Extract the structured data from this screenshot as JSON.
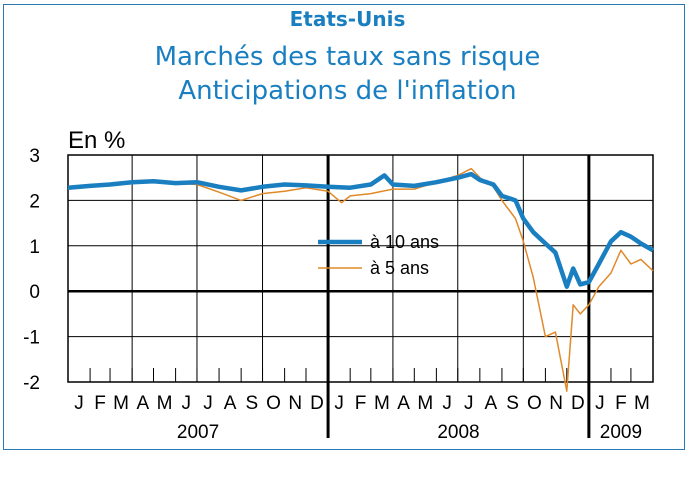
{
  "header": {
    "supertitle": "Etats-Unis",
    "title_line1": "Marchés des taux sans risque",
    "title_line2": "Anticipations de l'inflation"
  },
  "colors": {
    "ten_year": "#1a7fc1",
    "five_year": "#e0892a",
    "title": "#1a7fc1"
  },
  "chart_data": {
    "type": "line",
    "unit_label": "En %",
    "ylim": [
      -2,
      3
    ],
    "yticks": [
      3,
      2,
      1,
      0,
      -1,
      -2
    ],
    "xlim": [
      "2007-01-01",
      "2009-04-01"
    ],
    "grid": true,
    "legend_placement": "center-right",
    "month_labels": [
      "J",
      "F",
      "M",
      "A",
      "M",
      "J",
      "J",
      "A",
      "S",
      "O",
      "N",
      "D",
      "J",
      "F",
      "M",
      "A",
      "M",
      "J",
      "J",
      "A",
      "S",
      "O",
      "N",
      "D",
      "J",
      "F",
      "M"
    ],
    "year_labels": [
      "2007",
      "2008",
      "2009"
    ],
    "series": [
      {
        "name": "à 10 ans",
        "points": [
          [
            "2007-01-01",
            2.28
          ],
          [
            "2007-02-01",
            2.32
          ],
          [
            "2007-03-01",
            2.35
          ],
          [
            "2007-04-01",
            2.4
          ],
          [
            "2007-05-01",
            2.42
          ],
          [
            "2007-06-01",
            2.38
          ],
          [
            "2007-07-01",
            2.4
          ],
          [
            "2007-08-01",
            2.3
          ],
          [
            "2007-09-01",
            2.22
          ],
          [
            "2007-10-01",
            2.3
          ],
          [
            "2007-11-01",
            2.35
          ],
          [
            "2007-12-01",
            2.33
          ],
          [
            "2008-01-01",
            2.3
          ],
          [
            "2008-02-01",
            2.28
          ],
          [
            "2008-03-01",
            2.35
          ],
          [
            "2008-03-20",
            2.55
          ],
          [
            "2008-04-01",
            2.35
          ],
          [
            "2008-05-01",
            2.32
          ],
          [
            "2008-06-01",
            2.4
          ],
          [
            "2008-07-01",
            2.5
          ],
          [
            "2008-07-20",
            2.58
          ],
          [
            "2008-08-01",
            2.45
          ],
          [
            "2008-08-20",
            2.35
          ],
          [
            "2008-09-01",
            2.1
          ],
          [
            "2008-09-20",
            2.0
          ],
          [
            "2008-10-01",
            1.6
          ],
          [
            "2008-10-15",
            1.3
          ],
          [
            "2008-11-01",
            1.05
          ],
          [
            "2008-11-15",
            0.85
          ],
          [
            "2008-12-01",
            0.1
          ],
          [
            "2008-12-10",
            0.5
          ],
          [
            "2008-12-20",
            0.15
          ],
          [
            "2009-01-01",
            0.2
          ],
          [
            "2009-01-15",
            0.6
          ],
          [
            "2009-02-01",
            1.1
          ],
          [
            "2009-02-15",
            1.3
          ],
          [
            "2009-03-01",
            1.2
          ],
          [
            "2009-03-15",
            1.05
          ],
          [
            "2009-04-01",
            0.9
          ]
        ]
      },
      {
        "name": "à 5 ans",
        "points": [
          [
            "2007-01-01",
            2.25
          ],
          [
            "2007-02-01",
            2.3
          ],
          [
            "2007-03-01",
            2.35
          ],
          [
            "2007-04-01",
            2.38
          ],
          [
            "2007-05-01",
            2.4
          ],
          [
            "2007-06-01",
            2.38
          ],
          [
            "2007-07-01",
            2.35
          ],
          [
            "2007-08-01",
            2.18
          ],
          [
            "2007-09-01",
            2.0
          ],
          [
            "2007-10-01",
            2.15
          ],
          [
            "2007-11-01",
            2.2
          ],
          [
            "2007-12-01",
            2.28
          ],
          [
            "2008-01-01",
            2.2
          ],
          [
            "2008-01-20",
            1.95
          ],
          [
            "2008-02-01",
            2.1
          ],
          [
            "2008-03-01",
            2.15
          ],
          [
            "2008-04-01",
            2.25
          ],
          [
            "2008-05-01",
            2.25
          ],
          [
            "2008-06-01",
            2.4
          ],
          [
            "2008-07-01",
            2.55
          ],
          [
            "2008-07-20",
            2.7
          ],
          [
            "2008-08-01",
            2.5
          ],
          [
            "2008-08-20",
            2.3
          ],
          [
            "2008-09-01",
            2.0
          ],
          [
            "2008-09-20",
            1.6
          ],
          [
            "2008-10-01",
            1.1
          ],
          [
            "2008-10-15",
            0.3
          ],
          [
            "2008-11-01",
            -1.0
          ],
          [
            "2008-11-15",
            -0.9
          ],
          [
            "2008-12-01",
            -2.2
          ],
          [
            "2008-12-10",
            -0.3
          ],
          [
            "2008-12-20",
            -0.5
          ],
          [
            "2009-01-01",
            -0.3
          ],
          [
            "2009-01-15",
            0.1
          ],
          [
            "2009-02-01",
            0.4
          ],
          [
            "2009-02-15",
            0.9
          ],
          [
            "2009-03-01",
            0.6
          ],
          [
            "2009-03-15",
            0.7
          ],
          [
            "2009-04-01",
            0.45
          ]
        ]
      }
    ]
  }
}
